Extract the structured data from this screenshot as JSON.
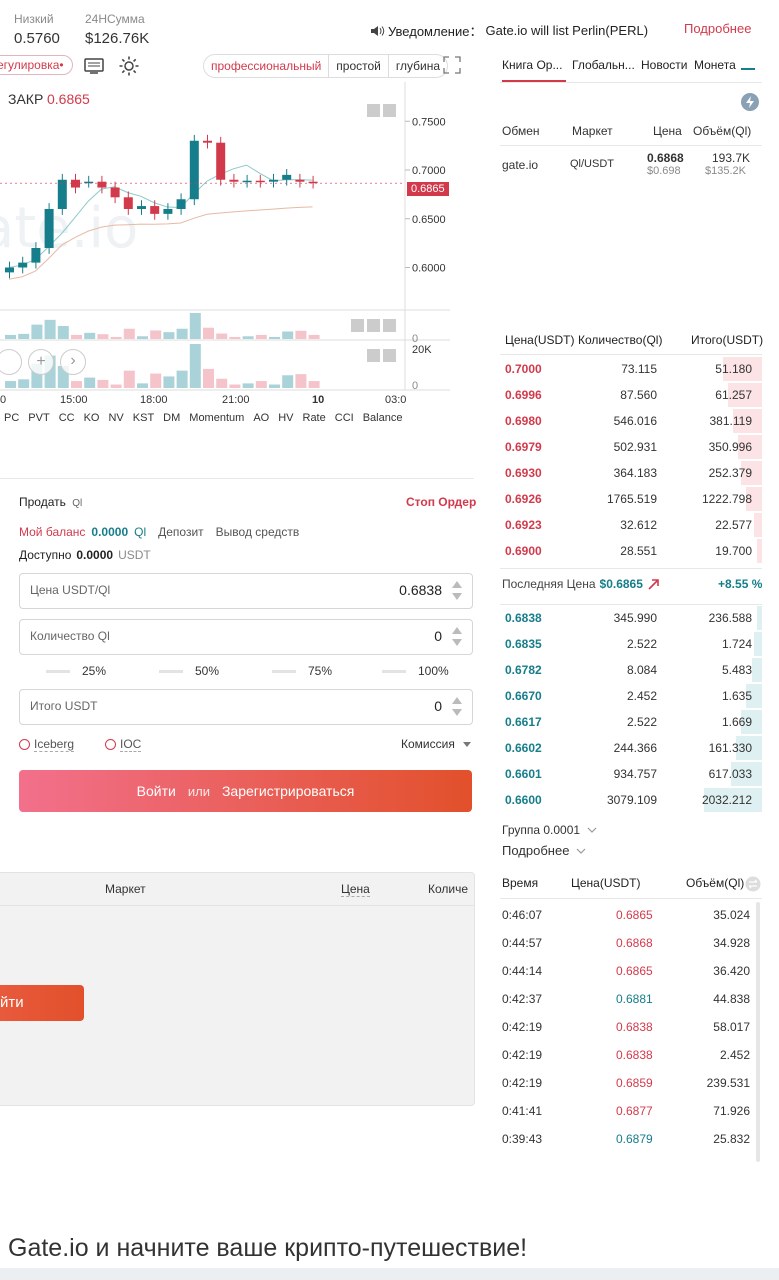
{
  "header": {
    "low_label": "Низкий",
    "low_value": "0.5760",
    "vol_label": "24НСумма",
    "vol_value": "$126.76K",
    "notice_label": "Уведомление：",
    "notice_text": "Gate.io will list Perlin(PERL)",
    "more_link": "Подробнее"
  },
  "chart_toolbar": {
    "regulation_chip": "егулировка•",
    "view_modes": [
      "профессиональный",
      "простой",
      "глубина"
    ],
    "active_mode": "профессиональный"
  },
  "right_tabs": [
    "Книга Ор...",
    "Глобальн...",
    "Новости",
    "Монета"
  ],
  "markets_table": {
    "headers": [
      "Обмен",
      "Маркет",
      "Цена",
      "Объём(Ql)"
    ],
    "rows": [
      {
        "exchange": "gate.io",
        "market": "Ql/USDT",
        "price": "0.6868",
        "price_usd": "$0.698",
        "volume": "193.7K",
        "volume_usd": "$135.2K"
      }
    ]
  },
  "chart": {
    "close_label": "ЗАКР",
    "close_value": "0.6865",
    "y_ticks": [
      "0.7500",
      "0.7000",
      "0.6500",
      "0.6000"
    ],
    "current_price_tag": "0.6865",
    "vol_tick_top": "0",
    "vol2_tick_top": "20K",
    "vol2_tick_bottom": "0",
    "x_ticks": [
      "0",
      "15:00",
      "18:00",
      "21:00",
      "10",
      "03:0"
    ],
    "indicators": [
      "PC",
      "PVT",
      "CC",
      "KO",
      "NV",
      "KST",
      "DM",
      "Momentum",
      "AO",
      "HV",
      "Rate",
      "CCI",
      "Balance"
    ]
  },
  "chart_data": {
    "type": "candlestick",
    "x": [
      "c1",
      "c2",
      "c3",
      "c4",
      "c5",
      "c6",
      "c7",
      "c8",
      "c9",
      "c10",
      "c11",
      "c12",
      "c13",
      "c14",
      "c15",
      "c16",
      "c17",
      "c18",
      "c19",
      "c20",
      "c21",
      "c22",
      "c23",
      "c24"
    ],
    "open": [
      0.595,
      0.6,
      0.605,
      0.62,
      0.66,
      0.69,
      0.688,
      0.688,
      0.682,
      0.672,
      0.66,
      0.663,
      0.655,
      0.66,
      0.67,
      0.73,
      0.728,
      0.69,
      0.688,
      0.689,
      0.688,
      0.69,
      0.69,
      0.688
    ],
    "close": [
      0.6,
      0.605,
      0.62,
      0.66,
      0.69,
      0.682,
      0.688,
      0.682,
      0.672,
      0.66,
      0.663,
      0.655,
      0.66,
      0.67,
      0.73,
      0.728,
      0.69,
      0.688,
      0.689,
      0.688,
      0.69,
      0.695,
      0.688,
      0.687
    ],
    "volumes": [
      120,
      150,
      420,
      560,
      380,
      120,
      180,
      140,
      60,
      300,
      80,
      250,
      200,
      300,
      760,
      330,
      160,
      60,
      80,
      120,
      60,
      220,
      240,
      120
    ],
    "ylim": [
      0.58,
      0.78
    ],
    "current": 0.6865
  },
  "order_form": {
    "sell_title": "Продать",
    "sell_unit": "Ql",
    "stop_order": "Стоп Ордер",
    "balance_label": "Мой баланс",
    "balance_value": "0.0000",
    "balance_unit": "Ql",
    "deposit": "Депозит",
    "withdraw": "Вывод средств",
    "available_label": "Доступно",
    "available_value": "0.0000",
    "available_unit": "USDT",
    "price_label": "Цена USDT/Ql",
    "price_value": "0.6838",
    "qty_label": "Количество Ql",
    "qty_value": "0",
    "percents": [
      "25%",
      "50%",
      "75%",
      "100%"
    ],
    "total_label": "Итого USDT",
    "total_value": "0",
    "iceberg": "Iceberg",
    "ioc": "IOC",
    "commission": "Комиссия",
    "login": "Войти",
    "or": "или",
    "register": "Зарегистрироваться"
  },
  "orders_panel": {
    "headers": [
      "Маркет",
      "Цена",
      "Количе"
    ],
    "login_button": "йти"
  },
  "orderbook": {
    "headers": [
      "Цена(USDT)",
      "Количество(Ql)",
      "Итого(USDT)"
    ],
    "asks": [
      {
        "price": "0.7000",
        "qty": "73.115",
        "total": "51.180",
        "depth": 0.15
      },
      {
        "price": "0.6996",
        "qty": "87.560",
        "total": "61.257",
        "depth": 0.13
      },
      {
        "price": "0.6980",
        "qty": "546.016",
        "total": "381.119",
        "depth": 0.11
      },
      {
        "price": "0.6979",
        "qty": "502.931",
        "total": "350.996",
        "depth": 0.09
      },
      {
        "price": "0.6930",
        "qty": "364.183",
        "total": "252.379",
        "depth": 0.08
      },
      {
        "price": "0.6926",
        "qty": "1765.519",
        "total": "1222.798",
        "depth": 0.06
      },
      {
        "price": "0.6923",
        "qty": "32.612",
        "total": "22.577",
        "depth": 0.03
      },
      {
        "price": "0.6900",
        "qty": "28.551",
        "total": "19.700",
        "depth": 0.02
      }
    ],
    "last_label": "Последняя Цена",
    "last_price": "$0.6865",
    "change": "+8.55 %",
    "bids": [
      {
        "price": "0.6838",
        "qty": "345.990",
        "total": "236.588",
        "depth": 0.02
      },
      {
        "price": "0.6835",
        "qty": "2.522",
        "total": "1.724",
        "depth": 0.03
      },
      {
        "price": "0.6782",
        "qty": "8.084",
        "total": "5.483",
        "depth": 0.04
      },
      {
        "price": "0.6670",
        "qty": "2.452",
        "total": "1.635",
        "depth": 0.06
      },
      {
        "price": "0.6617",
        "qty": "2.522",
        "total": "1.669",
        "depth": 0.08
      },
      {
        "price": "0.6602",
        "qty": "244.366",
        "total": "161.330",
        "depth": 0.1
      },
      {
        "price": "0.6601",
        "qty": "934.757",
        "total": "617.033",
        "depth": 0.12
      },
      {
        "price": "0.6600",
        "qty": "3079.109",
        "total": "2032.212",
        "depth": 0.22
      }
    ],
    "group_label": "Группа 0.0001",
    "more_label": "Подробнее"
  },
  "trades": {
    "headers": [
      "Время",
      "Цена(USDT)",
      "Объём(Ql)"
    ],
    "rows": [
      {
        "time": "0:46:07",
        "price": "0.6865",
        "side": "sell",
        "vol": "35.024"
      },
      {
        "time": "0:44:57",
        "price": "0.6868",
        "side": "sell",
        "vol": "34.928"
      },
      {
        "time": "0:44:14",
        "price": "0.6865",
        "side": "sell",
        "vol": "36.420"
      },
      {
        "time": "0:42:37",
        "price": "0.6881",
        "side": "buy",
        "vol": "44.838"
      },
      {
        "time": "0:42:19",
        "price": "0.6838",
        "side": "sell",
        "vol": "58.017"
      },
      {
        "time": "0:42:19",
        "price": "0.6838",
        "side": "sell",
        "vol": "2.452"
      },
      {
        "time": "0:42:19",
        "price": "0.6859",
        "side": "sell",
        "vol": "239.531"
      },
      {
        "time": "0:41:41",
        "price": "0.6877",
        "side": "sell",
        "vol": "71.926"
      },
      {
        "time": "0:39:43",
        "price": "0.6879",
        "side": "buy",
        "vol": "25.832"
      }
    ]
  },
  "footer": {
    "tagline": "Gate.io и начните ваше крипто-путешествие!"
  },
  "colors": {
    "accent": "#d23a4c",
    "buy": "#167d8a",
    "sell": "#d23a4c"
  }
}
